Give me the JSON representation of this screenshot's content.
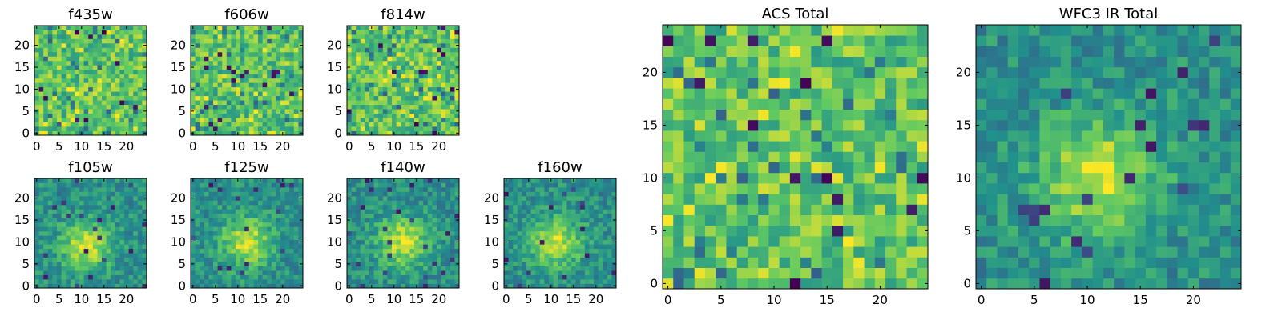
{
  "figure": {
    "colormap": "viridis",
    "colormap_stops": [
      "#440154",
      "#3b528b",
      "#21918c",
      "#5ec962",
      "#fde725"
    ]
  },
  "chart_data": [
    {
      "id": "f435w",
      "type": "heatmap",
      "title": "f435w",
      "size": 25,
      "xticks": [
        0,
        5,
        10,
        15,
        20
      ],
      "yticks": [
        0,
        5,
        10,
        15,
        20
      ],
      "xlim": [
        0,
        24
      ],
      "ylim": [
        0,
        24
      ],
      "pattern": "noise",
      "seed": 11
    },
    {
      "id": "f606w",
      "type": "heatmap",
      "title": "f606w",
      "size": 25,
      "xticks": [
        0,
        5,
        10,
        15,
        20
      ],
      "yticks": [
        0,
        5,
        10,
        15,
        20
      ],
      "xlim": [
        0,
        24
      ],
      "ylim": [
        0,
        24
      ],
      "pattern": "noise",
      "seed": 23
    },
    {
      "id": "f814w",
      "type": "heatmap",
      "title": "f814w",
      "size": 25,
      "xticks": [
        0,
        5,
        10,
        15,
        20
      ],
      "yticks": [
        0,
        5,
        10,
        15,
        20
      ],
      "xlim": [
        0,
        24
      ],
      "ylim": [
        0,
        24
      ],
      "pattern": "noise",
      "seed": 37
    },
    {
      "id": "f105w",
      "type": "heatmap",
      "title": "f105w",
      "size": 25,
      "xticks": [
        0,
        5,
        10,
        15,
        20
      ],
      "yticks": [
        0,
        5,
        10,
        15,
        20
      ],
      "xlim": [
        0,
        24
      ],
      "ylim": [
        0,
        24
      ],
      "pattern": "source",
      "seed": 41,
      "source_center": [
        11,
        9
      ]
    },
    {
      "id": "f125w",
      "type": "heatmap",
      "title": "f125w",
      "size": 25,
      "xticks": [
        0,
        5,
        10,
        15,
        20
      ],
      "yticks": [
        0,
        5,
        10,
        15,
        20
      ],
      "xlim": [
        0,
        24
      ],
      "ylim": [
        0,
        24
      ],
      "pattern": "source",
      "seed": 53,
      "source_center": [
        12,
        10
      ]
    },
    {
      "id": "f140w",
      "type": "heatmap",
      "title": "f140w",
      "size": 25,
      "xticks": [
        0,
        5,
        10,
        15,
        20
      ],
      "yticks": [
        0,
        5,
        10,
        15,
        20
      ],
      "xlim": [
        0,
        24
      ],
      "ylim": [
        0,
        24
      ],
      "pattern": "source",
      "seed": 67,
      "source_center": [
        12,
        10
      ]
    },
    {
      "id": "f160w",
      "type": "heatmap",
      "title": "f160w",
      "size": 25,
      "xticks": [
        0,
        5,
        10,
        15,
        20
      ],
      "yticks": [
        0,
        5,
        10,
        15,
        20
      ],
      "xlim": [
        0,
        24
      ],
      "ylim": [
        0,
        24
      ],
      "pattern": "source",
      "seed": 79,
      "source_center": [
        11,
        10
      ]
    },
    {
      "id": "acs",
      "type": "heatmap",
      "title": "ACS Total",
      "size": 25,
      "xticks": [
        0,
        5,
        10,
        15,
        20
      ],
      "yticks": [
        0,
        5,
        10,
        15,
        20
      ],
      "xlim": [
        0,
        24
      ],
      "ylim": [
        0,
        24
      ],
      "pattern": "noise",
      "seed": 97
    },
    {
      "id": "wfc3",
      "type": "heatmap",
      "title": "WFC3 IR Total",
      "size": 25,
      "xticks": [
        0,
        5,
        10,
        15,
        20
      ],
      "yticks": [
        0,
        5,
        10,
        15,
        20
      ],
      "xlim": [
        0,
        24
      ],
      "ylim": [
        0,
        24
      ],
      "pattern": "source",
      "seed": 101,
      "source_center": [
        11,
        10
      ]
    }
  ]
}
